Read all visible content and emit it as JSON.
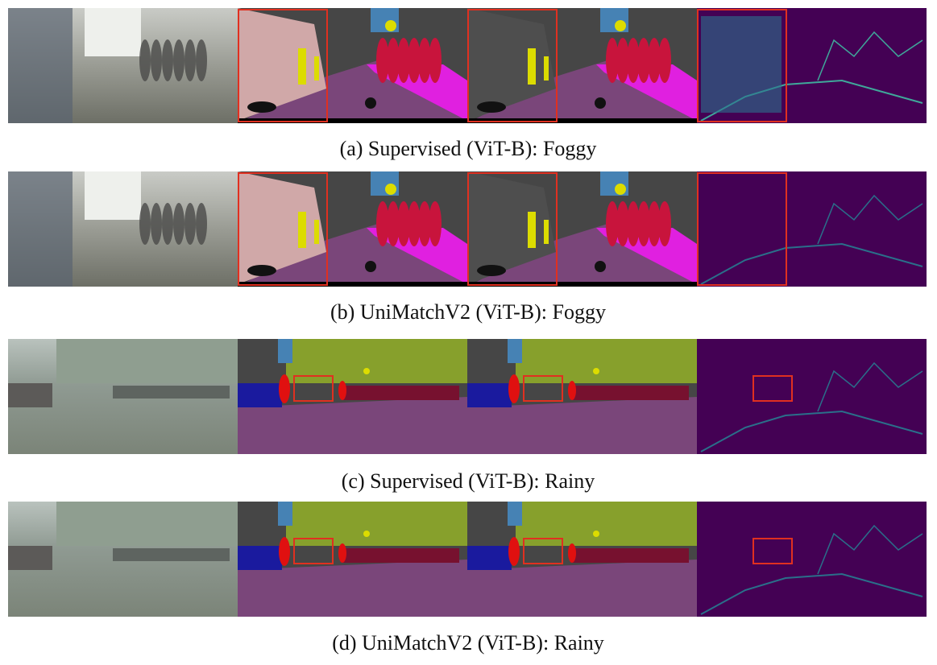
{
  "figure": {
    "rows": [
      {
        "caption": "(a) Supervised (ViT-B): Foggy"
      },
      {
        "caption": "(b) UniMatchV2 (ViT-B): Foggy"
      },
      {
        "caption": "(c) Supervised (ViT-B): Rainy"
      },
      {
        "caption": "(d) UniMatchV2 (ViT-B): Rainy"
      }
    ]
  }
}
